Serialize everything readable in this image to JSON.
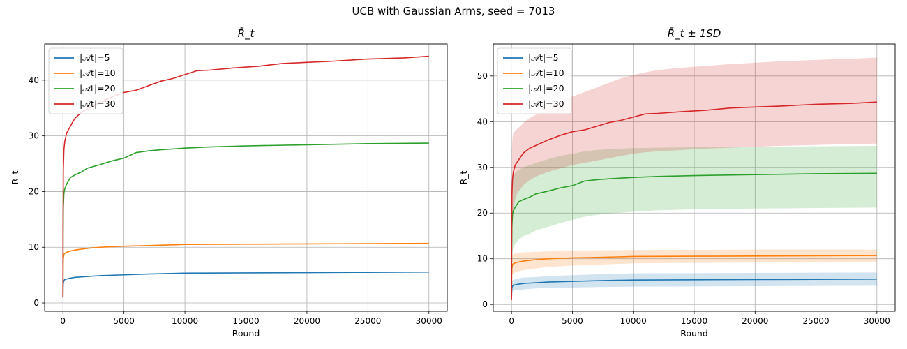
{
  "figure": {
    "title": "UCB with Gaussian Arms, seed = 7013"
  },
  "colors": {
    "grid": "#b0b0b0"
  },
  "chart_data": [
    {
      "type": "line",
      "title": "R̄_t",
      "xlabel": "Round",
      "ylabel": "R_t",
      "xlim": [
        -1500,
        31500
      ],
      "ylim": [
        -1.5,
        46.5
      ],
      "xticks": [
        0,
        5000,
        10000,
        15000,
        20000,
        25000,
        30000
      ],
      "yticks": [
        0,
        10,
        20,
        30,
        40
      ],
      "grid": true,
      "legend_position": "upper-left",
      "series": [
        {
          "name": "|𝒜t|=5",
          "color": "#1f77b4",
          "x": [
            0,
            10,
            30,
            80,
            150,
            300,
            600,
            1000,
            2000,
            3000,
            5000,
            7000,
            10000,
            15000,
            20000,
            25000,
            30000
          ],
          "y": [
            1.0,
            2.8,
            3.6,
            4.0,
            4.2,
            4.3,
            4.45,
            4.6,
            4.75,
            4.9,
            5.05,
            5.2,
            5.35,
            5.4,
            5.45,
            5.5,
            5.55
          ]
        },
        {
          "name": "|𝒜t|=10",
          "color": "#ff7f0e",
          "x": [
            0,
            10,
            30,
            80,
            150,
            300,
            600,
            1000,
            2000,
            3000,
            5000,
            7000,
            10000,
            15000,
            20000,
            25000,
            30000
          ],
          "y": [
            1.0,
            6.5,
            8.0,
            8.7,
            8.9,
            9.1,
            9.3,
            9.5,
            9.8,
            10.0,
            10.2,
            10.3,
            10.5,
            10.55,
            10.6,
            10.65,
            10.7
          ]
        },
        {
          "name": "|𝒜t|=20",
          "color": "#2ca02c",
          "x": [
            0,
            10,
            30,
            80,
            150,
            300,
            600,
            1000,
            1500,
            2000,
            3000,
            4000,
            5000,
            6000,
            7000,
            8000,
            10000,
            12000,
            15000,
            20000,
            25000,
            30000
          ],
          "y": [
            1.0,
            12.0,
            17.0,
            19.7,
            20.5,
            21.3,
            22.5,
            23.0,
            23.5,
            24.2,
            24.8,
            25.5,
            26.0,
            27.0,
            27.3,
            27.5,
            27.8,
            28.0,
            28.2,
            28.4,
            28.6,
            28.7
          ]
        },
        {
          "name": "|𝒜t|=30",
          "color": "#d62728",
          "x": [
            0,
            10,
            30,
            80,
            150,
            300,
            500,
            800,
            1000,
            1500,
            2000,
            3000,
            4000,
            5000,
            6000,
            7000,
            8000,
            9000,
            10000,
            11000,
            12000,
            14000,
            16000,
            18000,
            20000,
            22000,
            25000,
            28000,
            30000
          ],
          "y": [
            1.0,
            15.0,
            24.0,
            27.5,
            29.0,
            30.5,
            31.3,
            32.5,
            33.2,
            34.2,
            34.8,
            36.0,
            37.0,
            37.8,
            38.2,
            39.0,
            39.8,
            40.3,
            41.0,
            41.7,
            41.8,
            42.2,
            42.5,
            43.0,
            43.2,
            43.4,
            43.8,
            44.0,
            44.3
          ]
        }
      ]
    },
    {
      "type": "area",
      "title": "R̄_t ± 1SD",
      "xlabel": "Round",
      "ylabel": "R_t",
      "xlim": [
        -1500,
        31500
      ],
      "ylim": [
        -1.5,
        57.0
      ],
      "xticks": [
        0,
        5000,
        10000,
        15000,
        20000,
        25000,
        30000
      ],
      "yticks": [
        0,
        10,
        20,
        30,
        40,
        50
      ],
      "grid": true,
      "legend_position": "upper-left",
      "series": [
        {
          "name": "|𝒜t|=5",
          "color": "#1f77b4",
          "x": [
            0,
            10,
            30,
            80,
            150,
            300,
            600,
            1000,
            2000,
            3000,
            5000,
            7000,
            10000,
            15000,
            20000,
            25000,
            30000
          ],
          "y": [
            1.0,
            2.8,
            3.6,
            4.0,
            4.2,
            4.3,
            4.45,
            4.6,
            4.75,
            4.9,
            5.05,
            5.2,
            5.35,
            5.4,
            5.45,
            5.5,
            5.55
          ],
          "lower": [
            0.6,
            1.8,
            2.5,
            2.8,
            3.0,
            3.1,
            3.2,
            3.3,
            3.5,
            3.6,
            3.7,
            3.8,
            3.9,
            3.95,
            4.0,
            4.05,
            4.1
          ],
          "upper": [
            1.4,
            3.8,
            4.7,
            5.2,
            5.4,
            5.5,
            5.7,
            5.9,
            6.0,
            6.2,
            6.4,
            6.6,
            6.8,
            6.85,
            6.9,
            6.95,
            7.0
          ]
        },
        {
          "name": "|𝒜t|=10",
          "color": "#ff7f0e",
          "x": [
            0,
            10,
            30,
            80,
            150,
            300,
            600,
            1000,
            2000,
            3000,
            5000,
            7000,
            10000,
            15000,
            20000,
            25000,
            30000
          ],
          "y": [
            1.0,
            6.5,
            8.0,
            8.7,
            8.9,
            9.1,
            9.3,
            9.5,
            9.8,
            10.0,
            10.2,
            10.3,
            10.5,
            10.55,
            10.6,
            10.65,
            10.7
          ],
          "lower": [
            0.7,
            4.8,
            6.0,
            6.6,
            6.8,
            7.0,
            7.3,
            7.5,
            7.9,
            8.2,
            8.5,
            8.7,
            9.0,
            9.1,
            9.15,
            9.2,
            9.3
          ],
          "upper": [
            1.3,
            8.2,
            10.0,
            10.8,
            11.0,
            11.2,
            11.3,
            11.4,
            11.5,
            11.6,
            11.7,
            11.8,
            11.9,
            11.95,
            12.0,
            12.0,
            12.0
          ]
        },
        {
          "name": "|𝒜t|=20",
          "color": "#2ca02c",
          "x": [
            0,
            10,
            30,
            80,
            150,
            300,
            600,
            1000,
            1500,
            2000,
            3000,
            4000,
            5000,
            6000,
            7000,
            8000,
            10000,
            12000,
            15000,
            20000,
            25000,
            30000
          ],
          "y": [
            1.0,
            12.0,
            17.0,
            19.7,
            20.5,
            21.3,
            22.5,
            23.0,
            23.5,
            24.2,
            24.8,
            25.5,
            26.0,
            27.0,
            27.3,
            27.5,
            27.8,
            28.0,
            28.2,
            28.4,
            28.6,
            28.7
          ],
          "lower": [
            0.5,
            6.5,
            9.5,
            11.5,
            12.5,
            13.2,
            14.2,
            15.0,
            15.5,
            16.2,
            17.0,
            17.8,
            18.5,
            19.2,
            19.6,
            19.9,
            20.3,
            20.6,
            20.8,
            21.0,
            21.1,
            21.2
          ],
          "upper": [
            1.5,
            17.5,
            24.5,
            27.0,
            28.0,
            28.8,
            29.5,
            30.0,
            30.5,
            31.0,
            31.8,
            32.5,
            33.0,
            33.5,
            33.8,
            34.0,
            34.2,
            34.3,
            34.4,
            34.5,
            34.6,
            34.7
          ]
        },
        {
          "name": "|𝒜t|=30",
          "color": "#d62728",
          "x": [
            0,
            10,
            30,
            80,
            150,
            300,
            500,
            800,
            1000,
            1500,
            2000,
            3000,
            4000,
            5000,
            6000,
            7000,
            8000,
            9000,
            10000,
            11000,
            12000,
            14000,
            16000,
            18000,
            20000,
            22000,
            25000,
            28000,
            30000
          ],
          "y": [
            1.0,
            15.0,
            24.0,
            27.5,
            29.0,
            30.5,
            31.3,
            32.5,
            33.2,
            34.2,
            34.8,
            36.0,
            37.0,
            37.8,
            38.2,
            39.0,
            39.8,
            40.3,
            41.0,
            41.7,
            41.8,
            42.2,
            42.5,
            43.0,
            43.2,
            43.4,
            43.8,
            44.0,
            44.3
          ],
          "lower": [
            0.5,
            8.0,
            14.0,
            18.5,
            20.5,
            23.0,
            24.5,
            25.5,
            26.2,
            27.2,
            28.0,
            29.0,
            29.8,
            30.5,
            31.0,
            31.5,
            32.0,
            32.5,
            33.0,
            33.3,
            33.5,
            33.8,
            34.1,
            34.3,
            34.5,
            34.7,
            34.9,
            35.1,
            35.2
          ],
          "upper": [
            1.5,
            22.0,
            34.0,
            36.5,
            37.5,
            38.0,
            38.5,
            39.2,
            39.8,
            40.8,
            41.5,
            43.0,
            44.5,
            45.5,
            46.5,
            47.5,
            48.5,
            49.5,
            50.2,
            50.8,
            51.3,
            51.8,
            52.2,
            52.6,
            52.9,
            53.2,
            53.5,
            53.8,
            54.0
          ]
        }
      ]
    }
  ]
}
